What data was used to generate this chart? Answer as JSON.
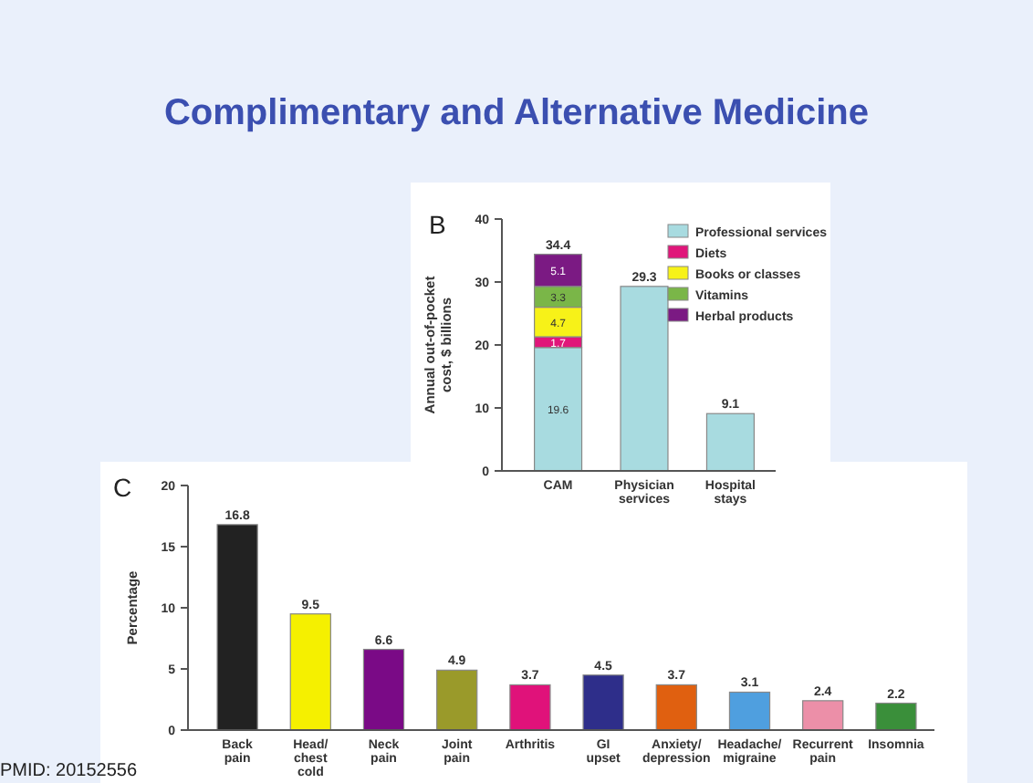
{
  "chart_data": [
    {
      "type": "bar",
      "title": "Complimentary and Alternative Medicine",
      "annotations": [
        "B",
        "PMID: 20152556"
      ],
      "ylabel": "Annual out-of-pocket cost, $ billions",
      "categories": [
        "CAM",
        "Physician services",
        "Hospital stays"
      ],
      "stacked": true,
      "ylim": [
        0,
        40
      ],
      "yticks": [
        0,
        10,
        20,
        30,
        40
      ],
      "data_labels": true,
      "totals": [
        "34.4",
        null,
        null
      ],
      "legend": "top right",
      "grid": false,
      "series": [
        {
          "name": "Professional services",
          "color": "#a8dbe0",
          "values": [
            19.6,
            29.3,
            9.1
          ]
        },
        {
          "name": "Diets",
          "color": "#e0167a",
          "values": [
            1.7,
            null,
            null
          ]
        },
        {
          "name": "Books or classes",
          "color": "#f7f218",
          "values": [
            4.7,
            null,
            null
          ]
        },
        {
          "name": "Vitamins",
          "color": "#7ab648",
          "values": [
            3.3,
            null,
            null
          ]
        },
        {
          "name": "Herbal products",
          "color": "#7b1a83",
          "values": [
            5.1,
            null,
            null
          ]
        }
      ]
    },
    {
      "type": "bar",
      "annotations": [
        "C"
      ],
      "ylabel": "Percentage",
      "categories": [
        "Back pain",
        "Head/ chest cold",
        "Neck pain",
        "Joint pain",
        "Arthritis",
        "GI upset",
        "Anxiety/ depression",
        "Headache/ migraine",
        "Recurrent pain",
        "Insomnia"
      ],
      "values": [
        16.8,
        9.5,
        6.6,
        4.9,
        3.7,
        4.5,
        3.7,
        3.1,
        2.4,
        2.2
      ],
      "colors": [
        "#222222",
        "#f5f000",
        "#7a0a86",
        "#9a9a2a",
        "#e0127a",
        "#2e2e8a",
        "#e06010",
        "#4f9fdf",
        "#ec8fa8",
        "#3a8f3a"
      ],
      "ylim": [
        0,
        20
      ],
      "yticks": [
        0,
        5,
        10,
        15,
        20
      ],
      "data_labels": true,
      "legend": false,
      "grid": false
    }
  ]
}
